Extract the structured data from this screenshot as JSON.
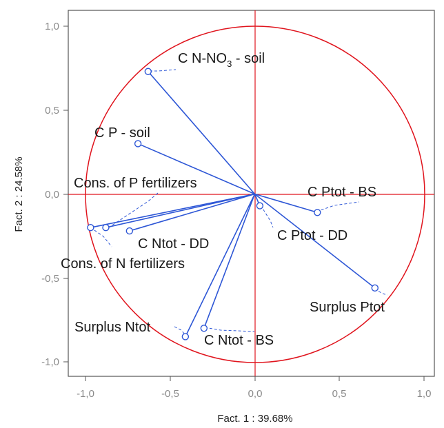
{
  "chart_data": {
    "type": "scatter",
    "xlabel": "Fact. 1 : 39.68%",
    "ylabel": "Fact. 2 : 24.58%",
    "xlim": [
      -1.0,
      1.0
    ],
    "ylim": [
      -1.0,
      1.0
    ],
    "x_ticks": [
      "-1,0",
      "-0,5",
      "0,0",
      "0,5",
      "1,0"
    ],
    "y_ticks": [
      "1,0",
      "0,5",
      "0,0",
      "-0,5",
      "-1,0"
    ],
    "unit_circle": true,
    "colors": {
      "vectors": "#2e57d6",
      "circle": "#e0141d",
      "axes": "#e0141d",
      "frame": "#555555"
    },
    "points": [
      {
        "name": "C N-NO3 - soil",
        "label_main": "C N-NO",
        "label_sub": "3",
        "label_tail": " - soil",
        "x": -0.63,
        "y": 0.73
      },
      {
        "name": "C P - soil",
        "label": "C P - soil",
        "x": -0.69,
        "y": 0.3
      },
      {
        "name": "Cons. of P fertilizers",
        "label": "Cons. of P fertilizers",
        "x": -0.88,
        "y": -0.2
      },
      {
        "name": "Cons. of N fertilizers",
        "label": "Cons. of N fertilizers",
        "x": -0.97,
        "y": -0.2
      },
      {
        "name": "C Ntot - DD",
        "label": "C Ntot - DD",
        "x": -0.74,
        "y": -0.22
      },
      {
        "name": "C Ptot - BS",
        "label": "C Ptot - BS",
        "x": 0.37,
        "y": -0.11
      },
      {
        "name": "C Ptot - DD",
        "label": "C Ptot - DD",
        "x": 0.03,
        "y": -0.07
      },
      {
        "name": "Surplus Ptot",
        "label": "Surplus Ptot",
        "x": 0.71,
        "y": -0.56
      },
      {
        "name": "Surplus Ntot",
        "label": "Surplus Ntot",
        "x": -0.41,
        "y": -0.85
      },
      {
        "name": "C Ntot - BS",
        "label": "C Ntot - BS",
        "x": -0.3,
        "y": -0.8
      }
    ]
  }
}
